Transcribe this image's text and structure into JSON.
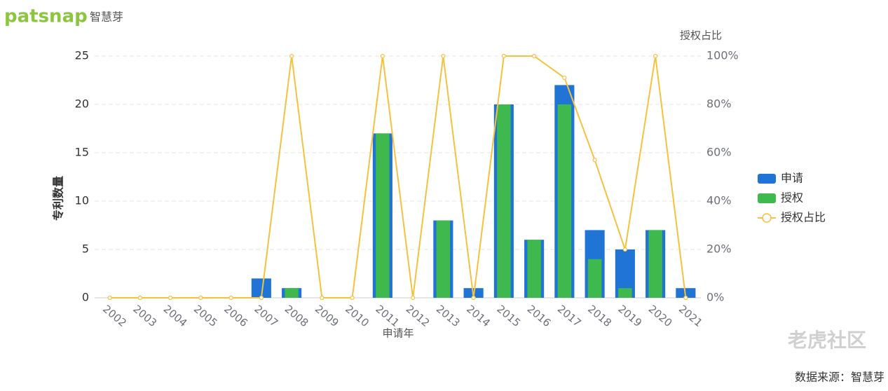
{
  "header": {
    "brand": "patsnap",
    "brand_cn": "智慧芽"
  },
  "watermark": "老虎社区",
  "source": "数据来源：智慧芽",
  "chart_data": {
    "type": "bar",
    "ylabel": "专利数量",
    "xlabel": "申请年",
    "y2label": "授权占比",
    "categories": [
      "2002",
      "2003",
      "2004",
      "2005",
      "2006",
      "2007",
      "2008",
      "2009",
      "2010",
      "2011",
      "2012",
      "2013",
      "2014",
      "2015",
      "2016",
      "2017",
      "2018",
      "2019",
      "2020",
      "2021"
    ],
    "series": [
      {
        "name": "申请",
        "type": "bar",
        "color": "#1f74d6",
        "values": [
          0,
          0,
          0,
          0,
          0,
          2,
          1,
          0,
          0,
          17,
          0,
          8,
          1,
          20,
          6,
          22,
          7,
          5,
          7,
          1
        ]
      },
      {
        "name": "授权",
        "type": "bar",
        "color": "#3fb84d",
        "values": [
          0,
          0,
          0,
          0,
          0,
          0,
          1,
          0,
          0,
          17,
          0,
          8,
          0,
          20,
          6,
          20,
          4,
          1,
          7,
          0
        ]
      },
      {
        "name": "授权占比",
        "type": "line",
        "axis": "y2",
        "color": "#f5c140",
        "values": [
          0,
          0,
          0,
          0,
          0,
          0,
          100,
          0,
          0,
          100,
          0,
          100,
          0,
          100,
          100,
          91,
          57,
          20,
          100,
          0
        ]
      }
    ],
    "ylim": [
      0,
      25
    ],
    "yticks": [
      0,
      5,
      10,
      15,
      20,
      25
    ],
    "y2lim": [
      0,
      100
    ],
    "y2ticks": [
      {
        "value": 0,
        "label": "0%"
      },
      {
        "value": 20,
        "label": "20%"
      },
      {
        "value": 40,
        "label": "40%"
      },
      {
        "value": 60,
        "label": "60%"
      },
      {
        "value": 80,
        "label": "80%"
      },
      {
        "value": 100,
        "label": "100%"
      }
    ],
    "grid": true,
    "legend": "right"
  }
}
